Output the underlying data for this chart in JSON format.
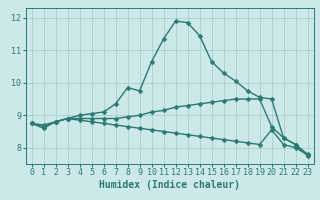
{
  "xlabel": "Humidex (Indice chaleur)",
  "xlim": [
    -0.5,
    23.5
  ],
  "ylim": [
    7.5,
    12.3
  ],
  "yticks": [
    8,
    9,
    10,
    11,
    12
  ],
  "xticks": [
    0,
    1,
    2,
    3,
    4,
    5,
    6,
    7,
    8,
    9,
    10,
    11,
    12,
    13,
    14,
    15,
    16,
    17,
    18,
    19,
    20,
    21,
    22,
    23
  ],
  "bg_color": "#cce8e8",
  "grid_color": "#aacfcf",
  "line_color": "#2a7a72",
  "curves": [
    {
      "x": [
        0,
        1,
        2,
        3,
        4,
        5,
        6,
        7,
        8,
        9,
        10,
        11,
        12,
        13,
        14,
        15,
        16,
        17,
        18,
        19,
        20,
        21,
        22,
        23
      ],
      "y": [
        8.75,
        8.6,
        8.8,
        8.9,
        9.0,
        9.05,
        9.1,
        9.35,
        9.85,
        9.75,
        10.65,
        11.35,
        11.9,
        11.85,
        11.45,
        10.65,
        10.3,
        10.05,
        9.75,
        9.55,
        9.5,
        8.3,
        8.1,
        7.75
      ]
    },
    {
      "x": [
        0,
        1,
        2,
        3,
        4,
        5,
        6,
        7,
        8,
        9,
        10,
        11,
        12,
        13,
        14,
        15,
        16,
        17,
        18,
        19,
        20,
        21,
        22,
        23
      ],
      "y": [
        8.75,
        8.7,
        8.8,
        8.9,
        8.9,
        8.9,
        8.9,
        8.9,
        8.95,
        9.0,
        9.1,
        9.15,
        9.25,
        9.3,
        9.35,
        9.4,
        9.45,
        9.5,
        9.5,
        9.5,
        8.65,
        8.3,
        8.1,
        7.8
      ]
    },
    {
      "x": [
        0,
        1,
        2,
        3,
        4,
        5,
        6,
        7,
        8,
        9,
        10,
        11,
        12,
        13,
        14,
        15,
        16,
        17,
        18,
        19,
        20,
        21,
        22,
        23
      ],
      "y": [
        8.75,
        8.65,
        8.8,
        8.9,
        8.85,
        8.8,
        8.75,
        8.7,
        8.65,
        8.6,
        8.55,
        8.5,
        8.45,
        8.4,
        8.35,
        8.3,
        8.25,
        8.2,
        8.15,
        8.1,
        8.55,
        8.1,
        8.0,
        7.78
      ]
    }
  ],
  "markersize": 2.5,
  "linewidth": 1.0,
  "label_fontsize": 7,
  "tick_fontsize": 6
}
